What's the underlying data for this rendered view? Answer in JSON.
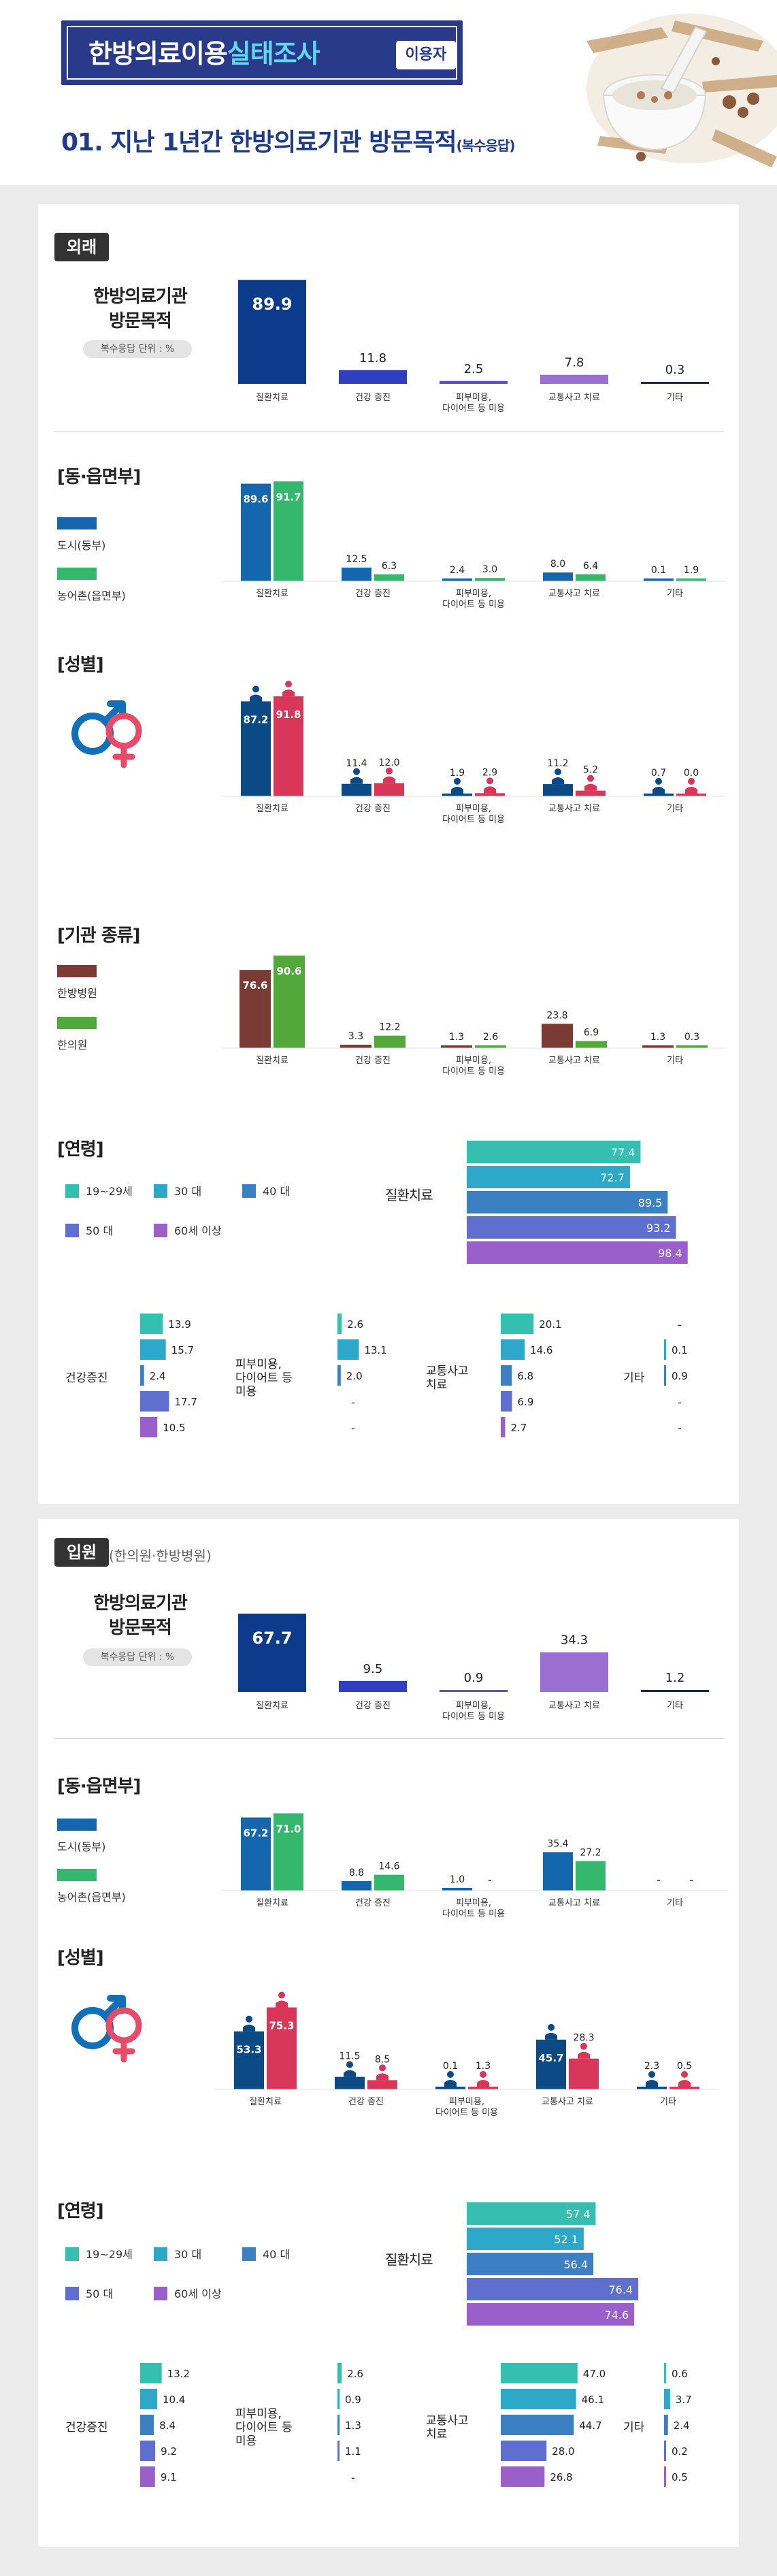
{
  "header": {
    "title_part1": "한방의료이용",
    "title_part2": "실태조사",
    "tag": "이용자",
    "subtitle": "01. 지난 1년간 한방의료기관 방문목적",
    "subtitle_small": "(복수응답)"
  },
  "colors": {
    "navy": "#0d3b8c",
    "blue": "#2f3fbf",
    "purple": "#5b4fc7",
    "violet": "#9b6fd1",
    "dark": "#0f2a4a",
    "urban": "#1466ad",
    "rural": "#34b86d",
    "male": "#0b4a85",
    "female": "#d8375a",
    "hospital": "#7a3b34",
    "clinic": "#52a83a",
    "age1": "#36bfb0",
    "age2": "#2ea8c8",
    "age3": "#3c7fc2",
    "age4": "#5f6fd0",
    "age5": "#9a5fc8"
  },
  "outpatient": {
    "tag": "외래",
    "label": "한방의료기관\n방문목적",
    "note": "복수응답  단위 : %",
    "region_label": "[동·읍면부]",
    "gender_label": "[성별]",
    "type_label": "[기관 종류]",
    "age_label": "[연령]",
    "legend_urban": "도시(동부)",
    "legend_rural": "농어촌(읍면부)",
    "legend_hospital": "한방병원",
    "legend_clinic": "한의원",
    "age_legend": [
      "19~29세",
      "30 대",
      "40 대",
      "50 대",
      "60세 이상"
    ],
    "age_main_label": "질환치료",
    "age_small_labels": [
      "건강증진",
      "피부미용,\n다이어트 등\n미용",
      "교통사고\n치료",
      "기타"
    ]
  },
  "inpatient": {
    "tag": "입원",
    "tag_note": "(한의원·한방병원)",
    "label": "한방의료기관\n방문목적",
    "note": "복수응답  단위 : %",
    "region_label": "[동·읍면부]",
    "gender_label": "[성별]",
    "age_label": "[연령]",
    "legend_urban": "도시(동부)",
    "legend_rural": "농어촌(읍면부)",
    "age_legend": [
      "19~29세",
      "30 대",
      "40 대",
      "50 대",
      "60세 이상"
    ],
    "age_main_label": "질환치료",
    "age_small_labels": [
      "건강증진",
      "피부미용,\n다이어트 등\n미용",
      "교통사고\n치료",
      "기타"
    ]
  },
  "chart_data": [
    {
      "id": "out-total",
      "type": "bar",
      "title": "외래 한방의료기관 방문목적",
      "categories": [
        "질환치료",
        "건강 증진",
        "피부미용,\n다이어트 등 미용",
        "교통사고 치료",
        "기타"
      ],
      "values": [
        89.9,
        11.8,
        2.5,
        7.8,
        0.3
      ]
    },
    {
      "id": "out-region",
      "type": "bar",
      "title": "외래 [동·읍면부]",
      "categories": [
        "질환치료",
        "건강 증진",
        "피부미용,\n다이어트 등 미용",
        "교통사고 치료",
        "기타"
      ],
      "series": [
        {
          "name": "도시(동부)",
          "values": [
            89.6,
            12.5,
            2.4,
            8.0,
            0.1
          ]
        },
        {
          "name": "농어촌(읍면부)",
          "values": [
            91.7,
            6.3,
            3.0,
            6.4,
            1.9
          ]
        }
      ]
    },
    {
      "id": "out-gender",
      "type": "bar",
      "title": "외래 [성별]",
      "categories": [
        "질환치료",
        "건강 증진",
        "피부미용,\n다이어트 등 미용",
        "교통사고 치료",
        "기타"
      ],
      "series": [
        {
          "name": "",
          "values": [
            87.2,
            11.4,
            1.9,
            11.2,
            0.7
          ]
        },
        {
          "name": "",
          "values": [
            91.8,
            12.0,
            2.9,
            5.2,
            0.0
          ]
        }
      ]
    },
    {
      "id": "out-type",
      "type": "bar",
      "title": "외래 [기관 종류]",
      "categories": [
        "질환치료",
        "건강 증진",
        "피부미용,\n다이어트 등 미용",
        "교통사고 치료",
        "기타"
      ],
      "series": [
        {
          "name": "한방병원",
          "values": [
            76.6,
            3.3,
            1.3,
            23.8,
            1.3
          ]
        },
        {
          "name": "한의원",
          "values": [
            90.6,
            12.2,
            2.6,
            6.9,
            0.3
          ]
        }
      ]
    },
    {
      "id": "out-age",
      "type": "bar",
      "title": "외래 [연령]",
      "categories": [
        "질환치료",
        "건강증진",
        "피부미용,\n다이어트 등\n미용",
        "교통사고\n치료",
        "기타"
      ],
      "series": [
        {
          "name": "19~29세",
          "values": [
            77.4,
            13.9,
            2.6,
            20.1,
            null
          ]
        },
        {
          "name": "30 대",
          "values": [
            72.7,
            15.7,
            13.1,
            14.6,
            0.1
          ]
        },
        {
          "name": "40 대",
          "values": [
            89.5,
            2.4,
            2.0,
            6.8,
            0.9
          ]
        },
        {
          "name": "50 대",
          "values": [
            93.2,
            17.7,
            null,
            6.9,
            null
          ]
        },
        {
          "name": "60세 이상",
          "values": [
            98.4,
            10.5,
            null,
            2.7,
            null
          ]
        }
      ]
    },
    {
      "id": "in-total",
      "type": "bar",
      "title": "입원 한방의료기관 방문목적",
      "categories": [
        "질환치료",
        "건강 증진",
        "피부미용,\n다이어트 등 미용",
        "교통사고 치료",
        "기타"
      ],
      "values": [
        67.7,
        9.5,
        0.9,
        34.3,
        1.2
      ]
    },
    {
      "id": "in-region",
      "type": "bar",
      "title": "입원 [동·읍면부]",
      "categories": [
        "질환치료",
        "건강 증진",
        "피부미용,\n다이어트 등 미용",
        "교통사고 치료",
        "기타"
      ],
      "series": [
        {
          "name": "도시(동부)",
          "values": [
            67.2,
            8.8,
            1.0,
            35.4,
            null
          ]
        },
        {
          "name": "농어촌(읍면부)",
          "values": [
            71.0,
            14.6,
            null,
            27.2,
            null
          ]
        }
      ]
    },
    {
      "id": "in-gender",
      "type": "bar",
      "title": "입원 [성별]",
      "categories": [
        "질환치료",
        "건강 증진",
        "피부미용,\n다이어트 등 미용",
        "교통사고 치료",
        "기타"
      ],
      "series": [
        {
          "name": "",
          "values": [
            53.3,
            11.5,
            0.1,
            45.7,
            2.3
          ]
        },
        {
          "name": "",
          "values": [
            75.3,
            8.5,
            1.3,
            28.3,
            0.5
          ]
        }
      ]
    },
    {
      "id": "in-age",
      "type": "bar",
      "title": "입원 [연령]",
      "categories": [
        "질환치료",
        "건강증진",
        "피부미용,\n다이어트 등\n미용",
        "교통사고\n치료",
        "기타"
      ],
      "series": [
        {
          "name": "19~29세",
          "values": [
            57.4,
            13.2,
            2.6,
            47.0,
            0.6
          ]
        },
        {
          "name": "30 대",
          "values": [
            52.1,
            10.4,
            0.9,
            46.1,
            3.7
          ]
        },
        {
          "name": "40 대",
          "values": [
            56.4,
            8.4,
            1.3,
            44.7,
            2.4
          ]
        },
        {
          "name": "50 대",
          "values": [
            76.4,
            9.2,
            1.1,
            28.0,
            0.2
          ]
        },
        {
          "name": "60세 이상",
          "values": [
            74.6,
            9.1,
            null,
            26.8,
            0.5
          ]
        }
      ]
    }
  ]
}
